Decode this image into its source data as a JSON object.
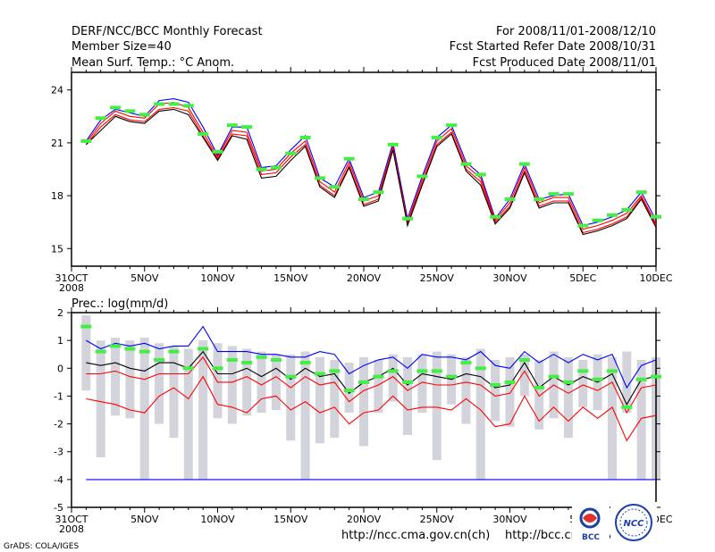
{
  "header": {
    "title": "DERF/NCC/BCC Monthly Forecast",
    "member_size": "Member Size=40",
    "variable": "Mean Surf. Temp.: °C Anom.",
    "period": "For 2008/11/01-2008/12/10",
    "refer_date": "Fcst Started Refer Date 2008/10/31",
    "produced_date": "Fcst Produced Date 2008/11/01"
  },
  "x_axis": {
    "year_label": "2008",
    "ticks": [
      {
        "day": 0,
        "label": "31OCT"
      },
      {
        "day": 5,
        "label": "5NOV"
      },
      {
        "day": 10,
        "label": "10NOV"
      },
      {
        "day": 15,
        "label": "15NOV"
      },
      {
        "day": 20,
        "label": "20NOV"
      },
      {
        "day": 25,
        "label": "25NOV"
      },
      {
        "day": 30,
        "label": "30NOV"
      },
      {
        "day": 35,
        "label": "5DEC"
      },
      {
        "day": 40,
        "label": "10DEC"
      }
    ]
  },
  "footer": {
    "url1": "http://ncc.cma.gov.cn(ch)",
    "url2": "http://bcc.cma.gov.cn",
    "grads": "GrADS: COLA/IGES",
    "logo_bcc": "BCC",
    "logo_ncc": "NCC"
  },
  "colors": {
    "blue": "#0000ff",
    "red": "#ff0000",
    "green": "#44ee44",
    "box": "#d3d3dc",
    "black": "#000000"
  },
  "chart_data": [
    {
      "type": "line",
      "title": "Mean Surf. Temp.: °C Anom.",
      "xlabel": "",
      "ylabel": "",
      "x_range": [
        0,
        40
      ],
      "ylim": [
        14,
        25
      ],
      "yticks": [
        15,
        18,
        21,
        24
      ],
      "x": [
        1,
        2,
        3,
        4,
        5,
        6,
        7,
        8,
        9,
        10,
        11,
        12,
        13,
        14,
        15,
        16,
        17,
        18,
        19,
        20,
        21,
        22,
        23,
        24,
        25,
        26,
        27,
        28,
        29,
        30,
        31,
        32,
        33,
        34,
        35,
        36,
        37,
        38,
        39,
        40
      ],
      "series": [
        {
          "name": "upper",
          "color": "blue",
          "values": [
            21.1,
            22.3,
            22.9,
            22.7,
            22.5,
            23.4,
            23.5,
            23.3,
            21.9,
            20.3,
            21.9,
            21.9,
            19.6,
            19.7,
            20.6,
            21.4,
            19.0,
            18.5,
            20.1,
            17.9,
            18.2,
            21.0,
            16.7,
            19.1,
            21.3,
            22.0,
            19.9,
            19.2,
            16.7,
            17.8,
            19.8,
            17.8,
            18.0,
            18.1,
            16.3,
            16.5,
            16.8,
            17.2,
            18.2,
            16.6
          ]
        },
        {
          "name": "mid-upper",
          "color": "red",
          "values": [
            21.0,
            22.1,
            22.8,
            22.5,
            22.4,
            23.2,
            23.3,
            23.0,
            21.6,
            20.2,
            21.7,
            21.6,
            19.4,
            19.5,
            20.4,
            21.1,
            18.8,
            18.2,
            19.9,
            17.7,
            18.0,
            20.8,
            16.5,
            18.9,
            21.1,
            21.8,
            19.7,
            19.0,
            16.6,
            17.6,
            19.6,
            17.6,
            17.9,
            17.9,
            16.1,
            16.3,
            16.6,
            17.0,
            18.0,
            16.4
          ]
        },
        {
          "name": "mid-lower",
          "color": "red",
          "values": [
            20.9,
            21.9,
            22.6,
            22.3,
            22.2,
            22.9,
            23.0,
            22.8,
            21.4,
            20.1,
            21.5,
            21.4,
            19.2,
            19.3,
            20.2,
            20.9,
            18.6,
            18.0,
            19.7,
            17.5,
            17.8,
            20.7,
            16.4,
            18.7,
            20.9,
            21.6,
            19.5,
            18.8,
            16.5,
            17.4,
            19.4,
            17.4,
            17.7,
            17.7,
            15.9,
            16.1,
            16.4,
            16.8,
            17.9,
            16.3
          ]
        },
        {
          "name": "lower",
          "color": "black",
          "values": [
            20.9,
            21.7,
            22.5,
            22.2,
            22.1,
            22.8,
            22.9,
            22.6,
            21.3,
            20.0,
            21.4,
            21.2,
            19.0,
            19.1,
            20.0,
            20.8,
            18.5,
            17.9,
            19.6,
            17.4,
            17.7,
            20.6,
            16.3,
            18.6,
            20.8,
            21.5,
            19.4,
            18.6,
            16.4,
            17.3,
            19.3,
            17.3,
            17.6,
            17.6,
            15.8,
            16.0,
            16.3,
            16.7,
            17.8,
            16.2
          ]
        },
        {
          "name": "observed",
          "color": "green",
          "marker": "dash",
          "values": [
            21.1,
            22.4,
            23.0,
            22.8,
            22.6,
            23.2,
            23.2,
            23.1,
            21.5,
            20.5,
            22.0,
            21.9,
            19.5,
            19.6,
            20.4,
            21.3,
            19.0,
            18.5,
            20.1,
            17.8,
            18.2,
            20.9,
            16.7,
            19.1,
            21.3,
            22.0,
            19.8,
            19.2,
            16.8,
            17.8,
            19.8,
            17.8,
            18.1,
            18.1,
            16.3,
            16.6,
            16.9,
            17.2,
            18.2,
            16.8
          ]
        }
      ]
    },
    {
      "type": "box",
      "title": "Prec.: log(mm/d)",
      "xlabel": "",
      "ylabel": "",
      "x_range": [
        0,
        40
      ],
      "ylim": [
        -5,
        2
      ],
      "yticks": [
        -5,
        -4,
        -3,
        -2,
        -1,
        0,
        1,
        2
      ],
      "x": [
        1,
        2,
        3,
        4,
        5,
        6,
        7,
        8,
        9,
        10,
        11,
        12,
        13,
        14,
        15,
        16,
        17,
        18,
        19,
        20,
        21,
        22,
        23,
        24,
        25,
        26,
        27,
        28,
        29,
        30,
        31,
        32,
        33,
        34,
        35,
        36,
        37,
        38,
        39,
        40
      ],
      "box_low": [
        -0.8,
        -3.2,
        -1.7,
        -1.8,
        -4.0,
        -2.0,
        -2.5,
        -4.0,
        -4.0,
        -1.8,
        -2.0,
        -1.7,
        -1.6,
        -1.5,
        -2.6,
        -4.0,
        -2.7,
        -2.5,
        -1.6,
        -2.8,
        -1.6,
        -1.2,
        -2.4,
        -1.6,
        -3.3,
        -1.3,
        -2.0,
        -4.0,
        -1.9,
        -2.1,
        -1.0,
        -2.2,
        -1.8,
        -2.5,
        -1.4,
        -1.5,
        -4.0,
        -1.6,
        -4.0,
        -4.0
      ],
      "box_high": [
        1.9,
        1.0,
        1.1,
        1.0,
        1.1,
        0.9,
        0.8,
        0.7,
        1.0,
        0.9,
        0.8,
        0.7,
        0.6,
        0.5,
        0.5,
        0.6,
        0.4,
        0.3,
        0.2,
        0.4,
        0.3,
        0.5,
        0.4,
        0.5,
        0.6,
        0.5,
        0.4,
        0.7,
        0.3,
        0.4,
        0.5,
        0.3,
        0.6,
        0.4,
        0.3,
        0.5,
        0.4,
        0.6,
        0.3,
        0.4
      ],
      "series": [
        {
          "name": "upper",
          "color": "blue",
          "values": [
            1.0,
            0.7,
            0.9,
            0.8,
            0.9,
            0.7,
            0.8,
            0.8,
            1.5,
            0.6,
            0.6,
            0.6,
            0.5,
            0.5,
            0.4,
            0.4,
            0.6,
            0.5,
            -0.2,
            0.1,
            0.3,
            0.4,
            0.0,
            0.5,
            0.4,
            0.4,
            0.3,
            0.6,
            0.1,
            0.0,
            0.6,
            0.2,
            0.5,
            0.2,
            0.5,
            0.3,
            0.5,
            -0.7,
            0.1,
            0.3
          ]
        },
        {
          "name": "mid",
          "color": "black",
          "values": [
            0.2,
            0.1,
            0.2,
            0.0,
            -0.1,
            0.2,
            0.2,
            0.0,
            0.6,
            -0.2,
            -0.2,
            0.0,
            -0.3,
            0.0,
            -0.4,
            0.0,
            -0.3,
            -0.2,
            -0.9,
            -0.5,
            -0.3,
            0.0,
            -0.6,
            -0.2,
            -0.3,
            -0.4,
            -0.2,
            -0.3,
            -0.7,
            -0.6,
            0.2,
            -0.7,
            -0.3,
            -0.6,
            -0.3,
            -0.5,
            -0.2,
            -1.3,
            -0.4,
            -0.3
          ]
        },
        {
          "name": "mid-low",
          "color": "red",
          "values": [
            -0.2,
            -0.2,
            -0.1,
            -0.3,
            -0.4,
            -0.2,
            -0.2,
            -0.2,
            0.4,
            -0.5,
            -0.5,
            -0.3,
            -0.6,
            -0.3,
            -0.7,
            -0.3,
            -0.6,
            -0.5,
            -1.2,
            -0.8,
            -0.6,
            -0.3,
            -0.8,
            -0.5,
            -0.6,
            -0.6,
            -0.5,
            -0.6,
            -1.0,
            -0.9,
            -0.1,
            -1.0,
            -0.6,
            -0.9,
            -0.6,
            -0.8,
            -0.5,
            -1.6,
            -0.7,
            -0.6
          ]
        },
        {
          "name": "low",
          "color": "red",
          "values": [
            -1.1,
            -1.2,
            -1.3,
            -1.5,
            -1.6,
            -1.0,
            -0.7,
            -1.1,
            -0.3,
            -1.3,
            -1.4,
            -1.6,
            -1.1,
            -1.0,
            -1.5,
            -1.2,
            -1.6,
            -1.4,
            -2.0,
            -1.6,
            -1.5,
            -1.0,
            -1.5,
            -1.4,
            -1.4,
            -1.5,
            -1.1,
            -1.5,
            -2.1,
            -2.0,
            -1.0,
            -1.9,
            -1.4,
            -1.9,
            -1.4,
            -1.8,
            -1.4,
            -2.6,
            -1.8,
            -1.7
          ]
        },
        {
          "name": "floor",
          "color": "blue",
          "values": [
            -4,
            -4,
            -4,
            -4,
            -4,
            -4,
            -4,
            -4,
            -4,
            -4,
            -4,
            -4,
            -4,
            -4,
            -4,
            -4,
            -4,
            -4,
            -4,
            -4,
            -4,
            -4,
            -4,
            -4,
            -4,
            -4,
            -4,
            -4,
            -4,
            -4,
            -4,
            -4,
            -4,
            -4,
            -4,
            -4,
            -4,
            -4,
            -4,
            -4
          ]
        },
        {
          "name": "observed",
          "color": "green",
          "marker": "dash",
          "values": [
            1.5,
            0.6,
            0.8,
            0.7,
            0.6,
            0.3,
            0.6,
            0.0,
            0.7,
            0.0,
            0.3,
            0.2,
            0.4,
            0.3,
            -0.3,
            0.2,
            -0.2,
            -0.1,
            -0.8,
            -0.5,
            -0.3,
            -0.1,
            -0.5,
            -0.1,
            -0.1,
            -0.3,
            0.2,
            0.0,
            -0.6,
            -0.5,
            0.3,
            -0.7,
            -0.3,
            -0.5,
            -0.1,
            -0.4,
            -0.1,
            -1.4,
            -0.4,
            -0.3
          ]
        }
      ]
    }
  ]
}
